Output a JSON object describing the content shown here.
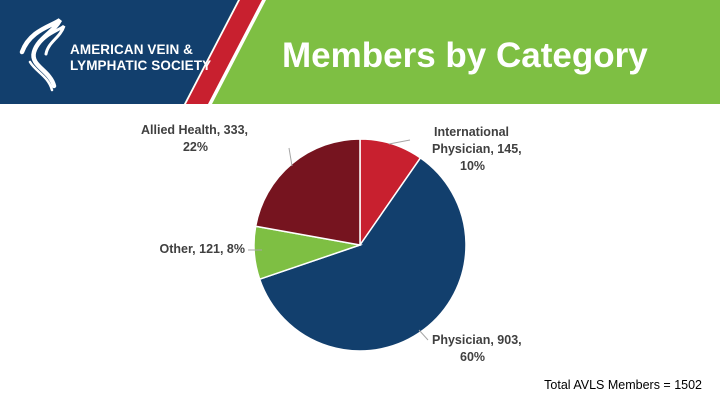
{
  "header": {
    "logo": {
      "line1": "AMERICAN VEIN &",
      "line2": "LYMPHATIC SOCIETY"
    },
    "title": "Members by Category"
  },
  "colors": {
    "navy": "#123f6d",
    "green": "#7ebf43",
    "red": "#c8202f",
    "dark_red": "#76141f",
    "label_gray": "#404040"
  },
  "chart_data": {
    "type": "pie",
    "title": "Members by Category",
    "slices": [
      {
        "name": "International Physician",
        "value": 145,
        "percent": "10%",
        "color": "#c8202f",
        "label_lines": [
          "International",
          "Physician, 145,",
          "10%"
        ]
      },
      {
        "name": "Physician",
        "value": 903,
        "percent": "60%",
        "color": "#123f6d",
        "label_lines": [
          "Physician, 903,",
          "60%"
        ]
      },
      {
        "name": "Other",
        "value": 121,
        "percent": "8%",
        "color": "#7ebf43",
        "label_lines": [
          "Other, 121, 8%"
        ]
      },
      {
        "name": "Allied Health",
        "value": 333,
        "percent": "22%",
        "color": "#76141f",
        "label_lines": [
          "Allied Health, 333,",
          "22%"
        ]
      }
    ],
    "total": 1502,
    "legend": "none"
  },
  "footer": {
    "total_text": "Total AVLS Members = 1502"
  }
}
